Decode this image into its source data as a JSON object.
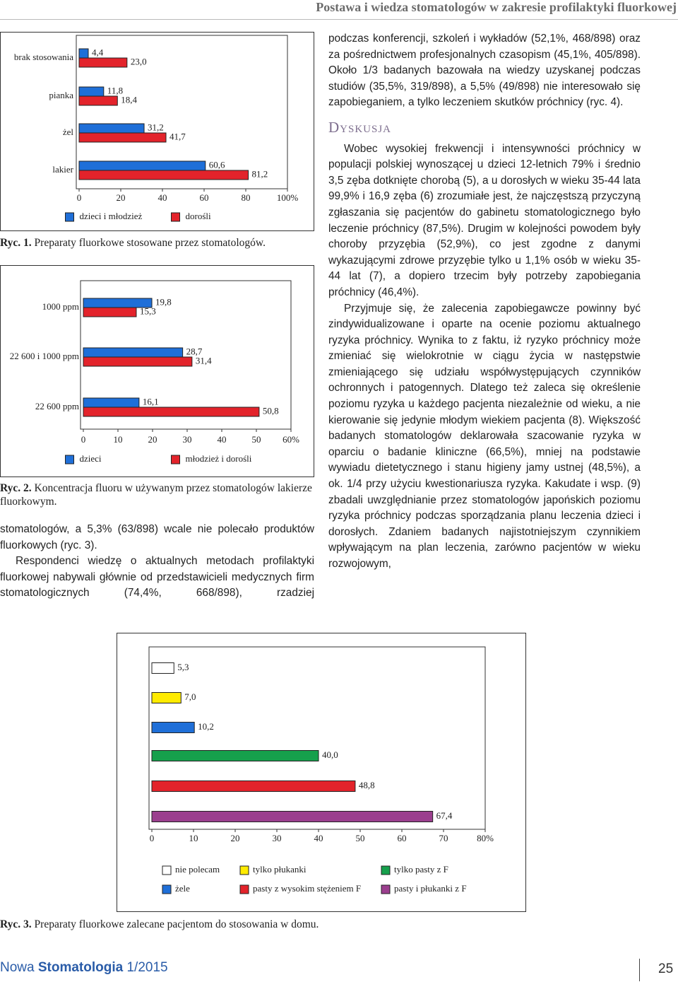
{
  "document": {
    "header": "Postawa i wiedza stomatologów w zakresie profilaktyki fluorkowej",
    "left_text": [
      "stomatologów, a 5,3% (63/898) wcale nie polecało produktów fluorkowych (ryc. 3).",
      "Respondenci wiedzę o aktualnych metodach profilaktyki fluorkowej nabywali głównie od przedstawicieli medycznych firm stomatologicznych (74,4%, 668/898), rzadziej"
    ],
    "right_text": "podczas konferencji, szkoleń i wykładów (52,1%, 468/898) oraz za pośrednictwem profesjonalnych czasopism (45,1%, 405/898). Około 1/3 badanych bazowała na wiedzy uzyskanej podczas studiów (35,5%, 319/898), a 5,5% (49/898) nie interesowało się zapobieganiem, a tylko leczeniem skutków próchnicy (ryc. 4).",
    "section_heading": "Dyskusja",
    "discussion": [
      "Wobec wysokiej frekwencji i intensywności próchnicy w populacji polskiej wynoszącej u dzieci 12-letnich 79% i średnio 3,5 zęba dotknięte chorobą (5), a u dorosłych w wieku 35-44 lata 99,9% i 16,9 zęba (6) zrozumiałe jest, że najczęstszą przyczyną zgłaszania się pacjentów do gabinetu stomatologicznego było leczenie próchnicy (87,5%). Drugim w kolejności powodem były choroby przyzębia (52,9%), co jest zgodne z danymi wykazującymi zdrowe przyzębie tylko u 1,1% osób w wieku 35-44 lat (7), a dopiero trzecim były potrzeby zapobiegania próchnicy (46,4%).",
      "Przyjmuje się, że zalecenia zapobiegawcze powinny być zindywidualizowane i oparte na ocenie poziomu aktualnego ryzyka próchnicy. Wynika to z faktu, iż ryzyko próchnicy może zmieniać się wielokrotnie w ciągu życia w następstwie zmieniającego się udziału współwystępujących czynników ochronnych i patogennych. Dlatego też zaleca się określenie poziomu ryzyka u każdego pacjenta niezależnie od wieku, a nie kierowanie się jedynie młodym wiekiem pacjenta (8). Większość badanych stomatologów deklarowała szacowanie ryzyka w oparciu o badanie kliniczne (66,5%), mniej na podstawie wywiadu dietetycznego i stanu higieny jamy ustnej (48,5%), a ok. 1/4 przy użyciu kwestionariusza ryzyka. Kakudate i wsp. (9) zbadali uwzględnianie przez stomatologów japońskich poziomu ryzyka próchnicy podczas sporządzania planu leczenia dzieci i dorosłych. Zdaniem badanych najistotniejszym czynnikiem wpływającym na plan leczenia, zarówno pacjentów w wieku rozwojowym,"
    ],
    "footer": {
      "journal_first": "Nowa",
      "journal_second": "Stomatologia",
      "issue": "1/2015",
      "page": "25"
    }
  },
  "chart_data": [
    {
      "type": "bar",
      "orientation": "horizontal",
      "caption_label": "Ryc. 1.",
      "caption": "Preparaty fluorkowe stosowane przez stomatologów.",
      "categories": [
        "brak stosowania",
        "pianka",
        "żel",
        "lakier"
      ],
      "series": [
        {
          "name": "dzieci i młodzież",
          "color": "#1f6fd8",
          "values": [
            4.4,
            11.8,
            31.2,
            60.6
          ],
          "value_labels": [
            "4,4",
            "11,8",
            "31,2",
            "60,6"
          ]
        },
        {
          "name": "dorośli",
          "color": "#e3232b",
          "values": [
            23.0,
            18.4,
            41.7,
            81.2
          ],
          "value_labels": [
            "23,0",
            "18,4",
            "41,7",
            "81,2"
          ]
        }
      ],
      "xlim": [
        0,
        100
      ],
      "xticks": [
        0,
        20,
        40,
        60,
        80,
        {
          "value": 100,
          "label": "100%"
        }
      ]
    },
    {
      "type": "bar",
      "orientation": "horizontal",
      "caption_label": "Ryc. 2.",
      "caption": "Koncentracja fluoru w używanym przez stomatologów lakierze fluorkowym.",
      "categories": [
        "1000 ppm",
        "22 600 i 1000 ppm",
        "22 600 ppm"
      ],
      "series": [
        {
          "name": "dzieci",
          "color": "#1f6fd8",
          "values": [
            19.8,
            28.7,
            16.1
          ],
          "value_labels": [
            "19,8",
            "28,7",
            "16,1"
          ]
        },
        {
          "name": "młodzież i dorośli",
          "color": "#e3232b",
          "values": [
            15.3,
            31.4,
            50.8
          ],
          "value_labels": [
            "15,3",
            "31,4",
            "50,8"
          ]
        }
      ],
      "xlim": [
        0,
        60
      ],
      "xticks": [
        0,
        10,
        20,
        30,
        40,
        50,
        {
          "value": 60,
          "label": "60%"
        }
      ]
    },
    {
      "type": "bar",
      "orientation": "horizontal",
      "caption_label": "Ryc. 3.",
      "caption": "Preparaty fluorkowe zalecane pacjentom do stosowania w domu.",
      "categories": [
        "nie polecam",
        "tylko płukanki",
        "żele",
        "tylko pasty z F",
        "pasty z wysokim stężeniem F",
        "pasty i płukanki z F"
      ],
      "values": [
        5.3,
        7.0,
        10.2,
        40.0,
        48.8,
        67.4
      ],
      "value_labels": [
        "5,3",
        "7,0",
        "10,2",
        "40,0",
        "48,8",
        "67,4"
      ],
      "colors": [
        "#ffffff",
        "#ffeb00",
        "#1f6fd8",
        "#16a04c",
        "#e3232b",
        "#9b3f8e"
      ],
      "xlim": [
        0,
        80
      ],
      "xticks": [
        0,
        10,
        20,
        30,
        40,
        50,
        60,
        70,
        {
          "value": 80,
          "label": "80%"
        }
      ]
    }
  ]
}
